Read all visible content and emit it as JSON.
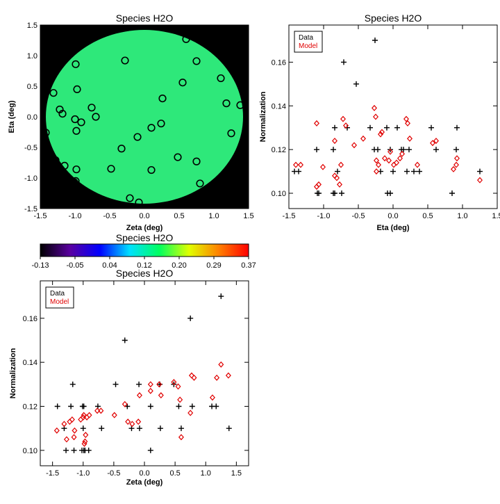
{
  "chart_data": [
    {
      "type": "scatter",
      "title": "Species H2O",
      "xlabel": "Zeta (deg)",
      "ylabel": "Eta (deg)",
      "xlim": [
        -1.5,
        1.5
      ],
      "ylim": [
        -1.5,
        1.5
      ],
      "xticks": [
        "-1.5",
        "-1.0",
        "-0.5",
        "0.0",
        "0.5",
        "1.0",
        "1.5"
      ],
      "yticks": [
        "-1.5",
        "-1.0",
        "-0.5",
        "0.0",
        "0.5",
        "1.0",
        "1.5"
      ],
      "background_color": "#000000",
      "field_color": "#2ee87a",
      "marker": "open-circle",
      "points": [
        [
          -1.42,
          -0.26
        ],
        [
          -1.31,
          0.39
        ],
        [
          -1.28,
          -0.71
        ],
        [
          -1.22,
          0.12
        ],
        [
          -1.18,
          0.05
        ],
        [
          -1.15,
          -0.8
        ],
        [
          -1.01,
          -1.07
        ],
        [
          -0.99,
          -1.05
        ],
        [
          -1.0,
          -0.04
        ],
        [
          -0.98,
          -0.23
        ],
        [
          -0.98,
          -0.86
        ],
        [
          -0.91,
          -0.09
        ],
        [
          -0.99,
          0.86
        ],
        [
          -0.97,
          0.45
        ],
        [
          -0.76,
          0.15
        ],
        [
          -0.7,
          0.0
        ],
        [
          -0.48,
          -0.85
        ],
        [
          -0.33,
          -0.52
        ],
        [
          -0.28,
          0.92
        ],
        [
          -0.21,
          -1.33
        ],
        [
          -0.1,
          -0.33
        ],
        [
          -0.08,
          -1.4
        ],
        [
          0.1,
          -0.87
        ],
        [
          0.1,
          -0.18
        ],
        [
          0.24,
          -0.11
        ],
        [
          0.26,
          0.3
        ],
        [
          0.48,
          -0.66
        ],
        [
          0.55,
          0.56
        ],
        [
          0.6,
          1.27
        ],
        [
          0.75,
          0.91
        ],
        [
          0.75,
          -0.73
        ],
        [
          0.8,
          -1.09
        ],
        [
          1.1,
          0.63
        ],
        [
          1.18,
          0.22
        ],
        [
          1.25,
          -0.27
        ],
        [
          1.38,
          0.19
        ]
      ]
    },
    {
      "type": "scatter",
      "title": "Species H2O",
      "xlabel": "Eta (deg)",
      "ylabel": "Normalization",
      "xlim": [
        -1.5,
        1.5
      ],
      "ylim": [
        0.093,
        0.177
      ],
      "xticks": [
        "-1.5",
        "-1.0",
        "-0.5",
        "0.0",
        "0.5",
        "1.0",
        "1.5"
      ],
      "yticks": [
        "0.10",
        "0.12",
        "0.14",
        "0.16"
      ],
      "legend": {
        "position": "top-left",
        "entries": [
          {
            "name": "Data",
            "color": "#000000"
          },
          {
            "name": "Model",
            "color": "#e00000"
          }
        ]
      },
      "series": [
        {
          "name": "Data",
          "marker": "plus",
          "color": "#000000",
          "points": [
            [
              -1.42,
              0.11
            ],
            [
              -1.36,
              0.11
            ],
            [
              -1.09,
              0.1
            ],
            [
              -1.07,
              0.1
            ],
            [
              -1.1,
              0.12
            ],
            [
              -0.86,
              0.1
            ],
            [
              -0.84,
              0.1
            ],
            [
              -0.86,
              0.12
            ],
            [
              -0.84,
              0.13
            ],
            [
              -0.8,
              0.11
            ],
            [
              -0.74,
              0.1
            ],
            [
              -0.71,
              0.16
            ],
            [
              -0.66,
              0.13
            ],
            [
              -0.53,
              0.15
            ],
            [
              -0.33,
              0.13
            ],
            [
              -0.26,
              0.17
            ],
            [
              -0.27,
              0.12
            ],
            [
              -0.22,
              0.12
            ],
            [
              -0.18,
              0.11
            ],
            [
              -0.09,
              0.13
            ],
            [
              -0.08,
              0.1
            ],
            [
              -0.04,
              0.1
            ],
            [
              -0.04,
              0.12
            ],
            [
              0.0,
              0.11
            ],
            [
              0.06,
              0.13
            ],
            [
              0.12,
              0.12
            ],
            [
              0.15,
              0.12
            ],
            [
              0.2,
              0.11
            ],
            [
              0.23,
              0.12
            ],
            [
              0.3,
              0.11
            ],
            [
              0.38,
              0.11
            ],
            [
              0.55,
              0.13
            ],
            [
              0.62,
              0.12
            ],
            [
              0.85,
              0.1
            ],
            [
              0.91,
              0.12
            ],
            [
              0.92,
              0.13
            ],
            [
              1.25,
              0.11
            ]
          ]
        },
        {
          "name": "Model",
          "marker": "open-diamond",
          "color": "#e00000",
          "points": [
            [
              -1.4,
              0.113
            ],
            [
              -1.33,
              0.113
            ],
            [
              -1.1,
              0.132
            ],
            [
              -1.1,
              0.103
            ],
            [
              -1.07,
              0.104
            ],
            [
              -1.01,
              0.112
            ],
            [
              -0.84,
              0.124
            ],
            [
              -0.84,
              0.108
            ],
            [
              -0.81,
              0.107
            ],
            [
              -0.77,
              0.104
            ],
            [
              -0.75,
              0.113
            ],
            [
              -0.72,
              0.134
            ],
            [
              -0.68,
              0.131
            ],
            [
              -0.56,
              0.122
            ],
            [
              -0.43,
              0.125
            ],
            [
              -0.27,
              0.139
            ],
            [
              -0.25,
              0.135
            ],
            [
              -0.24,
              0.11
            ],
            [
              -0.24,
              0.115
            ],
            [
              -0.21,
              0.113
            ],
            [
              -0.18,
              0.127
            ],
            [
              -0.16,
              0.128
            ],
            [
              -0.12,
              0.116
            ],
            [
              -0.06,
              0.115
            ],
            [
              -0.04,
              0.119
            ],
            [
              0.01,
              0.113
            ],
            [
              0.05,
              0.114
            ],
            [
              0.1,
              0.116
            ],
            [
              0.13,
              0.118
            ],
            [
              0.19,
              0.134
            ],
            [
              0.21,
              0.132
            ],
            [
              0.24,
              0.125
            ],
            [
              0.35,
              0.113
            ],
            [
              0.57,
              0.123
            ],
            [
              0.62,
              0.124
            ],
            [
              0.87,
              0.111
            ],
            [
              0.91,
              0.113
            ],
            [
              0.92,
              0.116
            ],
            [
              1.25,
              0.106
            ]
          ]
        }
      ]
    },
    {
      "type": "colorbar",
      "title": "Species H2O",
      "ticks": [
        "-0.13",
        "-0.05",
        "0.04",
        "0.12",
        "0.20",
        "0.29",
        "0.37"
      ],
      "range": [
        -0.13,
        0.37
      ],
      "colormap": [
        "#000000",
        "#5a00a0",
        "#0000ff",
        "#00e0ff",
        "#00ff60",
        "#e0ff00",
        "#ff8000",
        "#ff0000"
      ]
    },
    {
      "type": "scatter",
      "title": "Species H2O",
      "xlabel": "Zeta (deg)",
      "ylabel": "Normalization",
      "xlim": [
        -1.7,
        1.7
      ],
      "ylim": [
        0.093,
        0.177
      ],
      "xticks": [
        "-1.5",
        "-1.0",
        "-0.5",
        "0.0",
        "0.5",
        "1.0",
        "1.5"
      ],
      "yticks": [
        "0.10",
        "0.12",
        "0.14",
        "0.16"
      ],
      "legend": {
        "position": "top-left",
        "entries": [
          {
            "name": "Data",
            "color": "#000000"
          },
          {
            "name": "Model",
            "color": "#e00000"
          }
        ]
      },
      "series": [
        {
          "name": "Data",
          "marker": "plus",
          "color": "#000000",
          "points": [
            [
              -1.42,
              0.12
            ],
            [
              -1.31,
              0.11
            ],
            [
              -1.28,
              0.1
            ],
            [
              -1.2,
              0.12
            ],
            [
              -1.17,
              0.13
            ],
            [
              -1.15,
              0.1
            ],
            [
              -1.02,
              0.1
            ],
            [
              -1.01,
              0.12
            ],
            [
              -1.0,
              0.11
            ],
            [
              -0.99,
              0.1
            ],
            [
              -0.99,
              0.12
            ],
            [
              -0.97,
              0.1
            ],
            [
              -0.91,
              0.1
            ],
            [
              -0.76,
              0.12
            ],
            [
              -0.7,
              0.11
            ],
            [
              -0.47,
              0.13
            ],
            [
              -0.32,
              0.15
            ],
            [
              -0.28,
              0.12
            ],
            [
              -0.21,
              0.11
            ],
            [
              -0.09,
              0.13
            ],
            [
              -0.08,
              0.11
            ],
            [
              0.1,
              0.1
            ],
            [
              0.1,
              0.12
            ],
            [
              0.25,
              0.13
            ],
            [
              0.26,
              0.11
            ],
            [
              0.48,
              0.13
            ],
            [
              0.56,
              0.12
            ],
            [
              0.6,
              0.11
            ],
            [
              0.75,
              0.16
            ],
            [
              0.78,
              0.12
            ],
            [
              1.1,
              0.12
            ],
            [
              1.17,
              0.12
            ],
            [
              1.25,
              0.17
            ],
            [
              1.38,
              0.11
            ]
          ]
        },
        {
          "name": "Model",
          "marker": "open-diamond",
          "color": "#e00000",
          "points": [
            [
              -1.43,
              0.109
            ],
            [
              -1.31,
              0.112
            ],
            [
              -1.27,
              0.105
            ],
            [
              -1.22,
              0.113
            ],
            [
              -1.18,
              0.114
            ],
            [
              -1.15,
              0.106
            ],
            [
              -1.14,
              0.109
            ],
            [
              -1.04,
              0.114
            ],
            [
              -1.0,
              0.115
            ],
            [
              -0.99,
              0.116
            ],
            [
              -0.98,
              0.103
            ],
            [
              -0.97,
              0.104
            ],
            [
              -0.96,
              0.107
            ],
            [
              -0.94,
              0.115
            ],
            [
              -0.9,
              0.116
            ],
            [
              -0.77,
              0.118
            ],
            [
              -0.71,
              0.118
            ],
            [
              -0.49,
              0.116
            ],
            [
              -0.32,
              0.121
            ],
            [
              -0.27,
              0.113
            ],
            [
              -0.2,
              0.112
            ],
            [
              -0.1,
              0.113
            ],
            [
              -0.08,
              0.125
            ],
            [
              0.1,
              0.127
            ],
            [
              0.1,
              0.13
            ],
            [
              0.24,
              0.13
            ],
            [
              0.27,
              0.125
            ],
            [
              0.48,
              0.131
            ],
            [
              0.55,
              0.129
            ],
            [
              0.58,
              0.123
            ],
            [
              0.6,
              0.106
            ],
            [
              0.75,
              0.117
            ],
            [
              0.77,
              0.134
            ],
            [
              0.81,
              0.133
            ],
            [
              1.11,
              0.124
            ],
            [
              1.18,
              0.133
            ],
            [
              1.25,
              0.139
            ],
            [
              1.37,
              0.134
            ]
          ]
        }
      ]
    }
  ]
}
